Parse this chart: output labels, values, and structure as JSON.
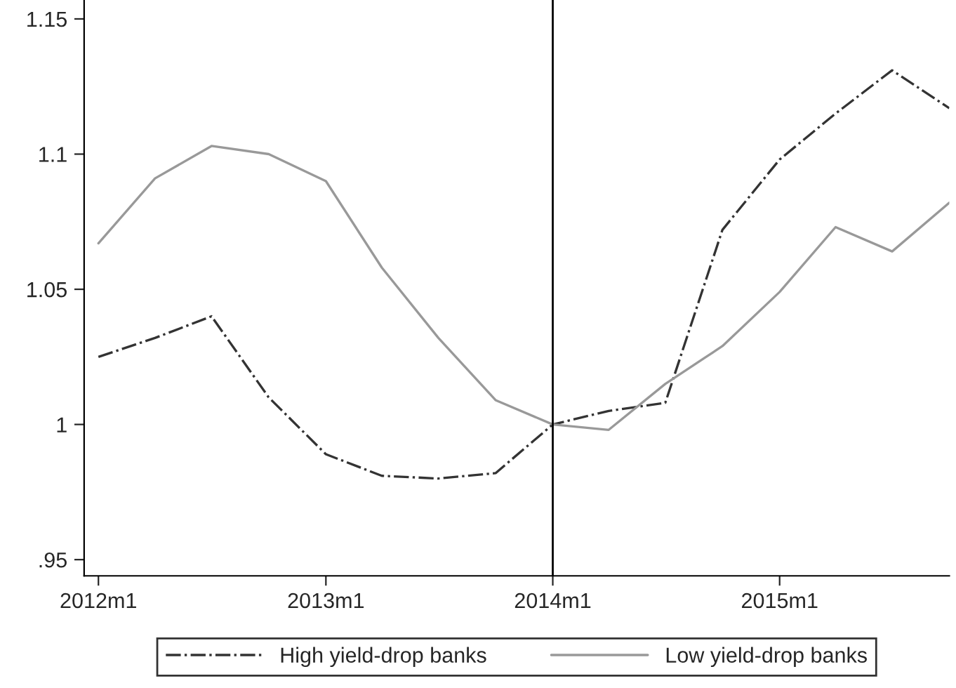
{
  "chart_data": {
    "type": "line",
    "x": [
      "2012-01",
      "2012-04",
      "2012-07",
      "2012-10",
      "2013-01",
      "2013-04",
      "2013-07",
      "2013-10",
      "2014-01",
      "2014-04",
      "2014-07",
      "2014-10",
      "2015-01",
      "2015-04",
      "2015-07",
      "2015-10"
    ],
    "series": [
      {
        "name": "High yield-drop banks",
        "color": "#333333",
        "line_style": "dashdot",
        "values": [
          1.025,
          1.032,
          1.04,
          1.01,
          0.989,
          0.981,
          0.98,
          0.982,
          1.0,
          1.005,
          1.008,
          1.072,
          1.098,
          1.115,
          1.131,
          1.117
        ]
      },
      {
        "name": "Low yield-drop banks",
        "color": "#999999",
        "line_style": "solid",
        "values": [
          1.067,
          1.091,
          1.103,
          1.1,
          1.09,
          1.058,
          1.032,
          1.009,
          1.0,
          0.998,
          1.015,
          1.029,
          1.049,
          1.073,
          1.064,
          1.082
        ]
      }
    ],
    "xlim": [
      "2011-12-09",
      "2015-10-01"
    ],
    "xticks": [
      {
        "value": "2012-01",
        "label": "2012m1"
      },
      {
        "value": "2013-01",
        "label": "2013m1"
      },
      {
        "value": "2014-01",
        "label": "2014m1"
      },
      {
        "value": "2015-01",
        "label": "2015m1"
      }
    ],
    "ylim": [
      0.944,
      1.157
    ],
    "yticks": [
      {
        "value": 0.95,
        "label": ".95"
      },
      1,
      {
        "value": 1.05,
        "label": "1.05"
      },
      {
        "value": 1.1,
        "label": "1.1"
      },
      {
        "value": 1.15,
        "label": "1.15"
      }
    ],
    "ref_lines": [
      {
        "axis": "x",
        "value": "2014-01",
        "color": "#000000",
        "line_style": "solid"
      }
    ],
    "grid": false,
    "legend": "bottom"
  }
}
